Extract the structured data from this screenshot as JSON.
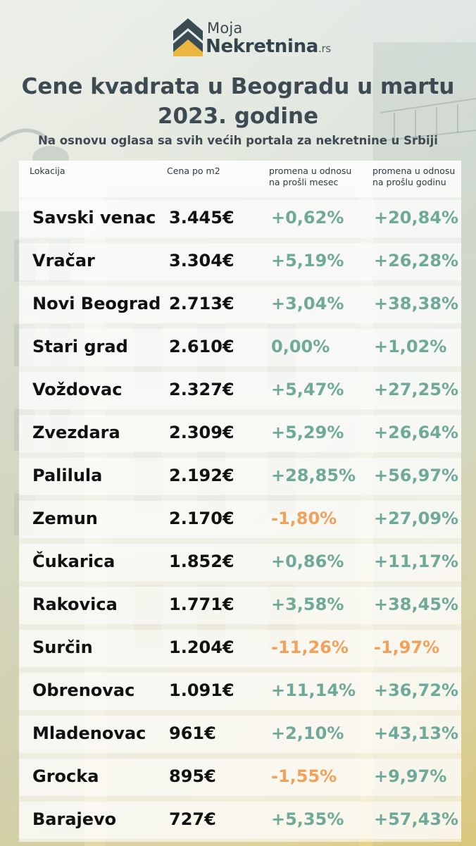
{
  "logo": {
    "line1": "Moja",
    "line2": "Nekretnina",
    "suffix": ".rs"
  },
  "title": "Cene kvadrata u Beogradu u martu 2023. godine",
  "subtitle": "Na osnovu oglasa sa svih većih portala za nekretnine u Srbiji",
  "colors": {
    "positive": "#6fa999",
    "negative": "#f2a15a",
    "text_dark": "#111111",
    "title": "#3d4a52"
  },
  "chart_data": {
    "type": "table",
    "columns": [
      "Lokacija",
      "Cena po m2",
      "promena u odnosu na prošli mesec",
      "promena u odnosu na prošlu godinu"
    ],
    "rows": [
      {
        "location": "Savski venac",
        "price": "3.445€",
        "month": "+0,62%",
        "year": "+20,84%"
      },
      {
        "location": "Vračar",
        "price": "3.304€",
        "month": "+5,19%",
        "year": "+26,28%"
      },
      {
        "location": "Novi Beograd",
        "price": "2.713€",
        "month": "+3,04%",
        "year": "+38,38%"
      },
      {
        "location": "Stari grad",
        "price": "2.610€",
        "month": "0,00%",
        "year": "+1,02%"
      },
      {
        "location": "Voždovac",
        "price": "2.327€",
        "month": "+5,47%",
        "year": "+27,25%"
      },
      {
        "location": "Zvezdara",
        "price": "2.309€",
        "month": "+5,29%",
        "year": "+26,64%"
      },
      {
        "location": "Palilula",
        "price": "2.192€",
        "month": "+28,85%",
        "year": "+56,97%"
      },
      {
        "location": "Zemun",
        "price": "2.170€",
        "month": "-1,80%",
        "year": "+27,09%"
      },
      {
        "location": "Čukarica",
        "price": "1.852€",
        "month": "+0,86%",
        "year": "+11,17%"
      },
      {
        "location": "Rakovica",
        "price": "1.771€",
        "month": "+3,58%",
        "year": "+38,45%"
      },
      {
        "location": "Surčin",
        "price": "1.204€",
        "month": "-11,26%",
        "year": "-1,97%"
      },
      {
        "location": "Obrenovac",
        "price": "1.091€",
        "month": "+11,14%",
        "year": "+36,72%"
      },
      {
        "location": "Mladenovac",
        "price": "961€",
        "month": "+2,10%",
        "year": "+43,13%"
      },
      {
        "location": "Grocka",
        "price": "895€",
        "month": "-1,55%",
        "year": "+9,97%"
      },
      {
        "location": "Barajevo",
        "price": "727€",
        "month": "+5,35%",
        "year": "+57,43%"
      }
    ]
  }
}
